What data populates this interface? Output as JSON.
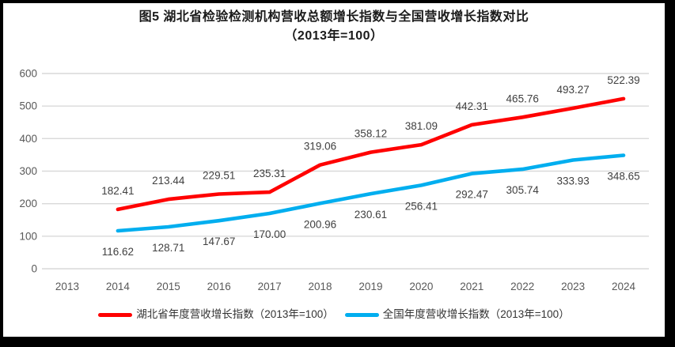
{
  "title": {
    "line1": "图5 湖北省检验检测机构营收总额增长指数与全国营收增长指数对比",
    "line2": "（2013年=100）"
  },
  "chart_data": {
    "type": "line",
    "categories": [
      "2013",
      "2014",
      "2015",
      "2016",
      "2017",
      "2018",
      "2019",
      "2020",
      "2021",
      "2022",
      "2023",
      "2024"
    ],
    "series": [
      {
        "name": "湖北省年度营收增长指数（2013年=100）",
        "color": "#FF0000",
        "values": [
          null,
          182.41,
          213.44,
          229.51,
          235.31,
          319.06,
          358.12,
          381.09,
          442.31,
          465.76,
          493.27,
          522.39
        ]
      },
      {
        "name": "全国年度营收增长指数（2013年=100）",
        "color": "#00AEEF",
        "values": [
          null,
          116.62,
          128.71,
          147.67,
          170.0,
          200.96,
          230.61,
          256.41,
          292.47,
          305.74,
          333.93,
          348.65
        ]
      }
    ],
    "y_ticks": [
      0,
      100,
      200,
      300,
      400,
      500,
      600
    ],
    "ylim": [
      0,
      600
    ],
    "grid": "horizontal-only",
    "legend_position": "bottom",
    "data_labels": true,
    "colors": {
      "axis_text": "#595959",
      "data_label_text": "#404040",
      "gridline": "#D9D9D9",
      "frame_border": "#000000",
      "background": "#FFFFFF"
    }
  }
}
